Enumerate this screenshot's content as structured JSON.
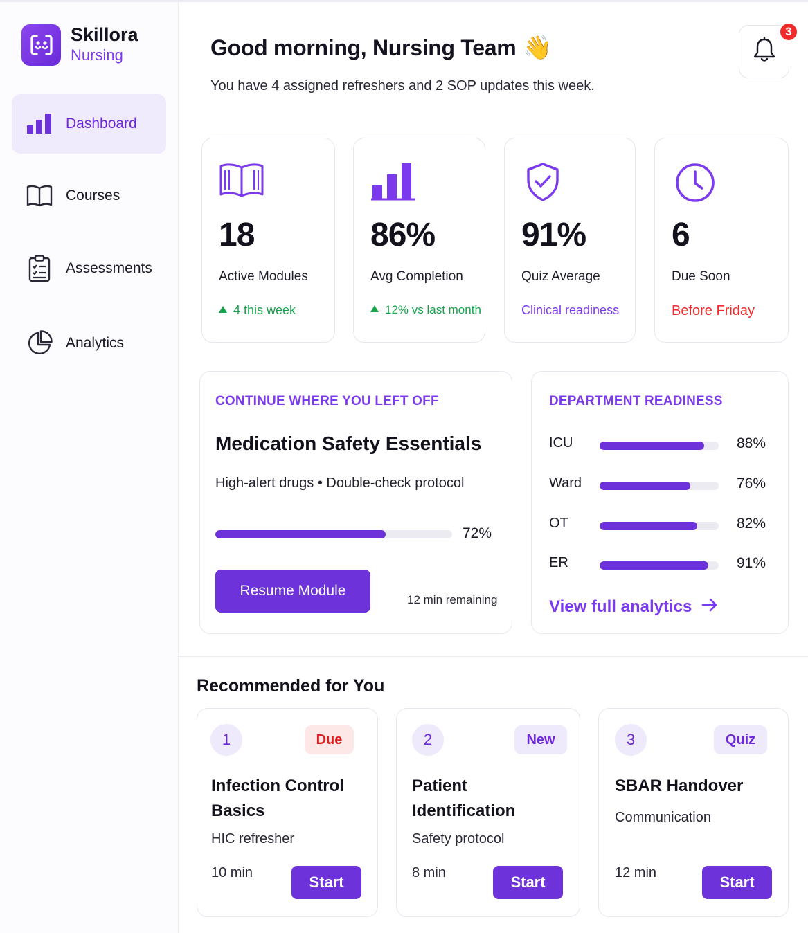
{
  "brand": {
    "name": "Skillora",
    "subtitle": "Nursing",
    "logo_icon": "skillora-logo-icon"
  },
  "sidebar": {
    "items": [
      {
        "label": "Dashboard",
        "icon": "bar-chart-icon",
        "active": true
      },
      {
        "label": "Courses",
        "icon": "book-open-icon",
        "active": false
      },
      {
        "label": "Assessments",
        "icon": "clipboard-list-icon",
        "active": false
      },
      {
        "label": "Analytics",
        "icon": "pie-chart-icon",
        "active": false
      }
    ]
  },
  "header": {
    "greeting": "Good morning, Nursing Team",
    "wave_emoji": "👋",
    "subtitle": "You have 4 assigned refreshers and 2 SOP updates this week.",
    "notifications_count": "3"
  },
  "stats": [
    {
      "value": "18",
      "label": "Active Modules",
      "note": "4 this week",
      "trend": "up",
      "icon": "book-open-icon"
    },
    {
      "value": "86%",
      "label": "Avg Completion",
      "note": "12% vs last month",
      "trend": "up",
      "icon": "bar-chart-icon"
    },
    {
      "value": "91%",
      "label": "Quiz Average",
      "note": "Clinical readiness",
      "icon": "shield-check-icon"
    },
    {
      "value": "6",
      "label": "Due Soon",
      "note": "Before Friday",
      "icon": "clock-icon"
    }
  ],
  "continue": {
    "heading": "CONTINUE WHERE YOU LEFT OFF",
    "course_title": "Medication Safety Essentials",
    "meta": "High-alert drugs • Double-check protocol",
    "progress_pct": "72%",
    "progress": 72,
    "button": "Resume Module",
    "remaining": "12 min remaining"
  },
  "readiness": {
    "heading": "DEPARTMENT READINESS",
    "departments": [
      {
        "name": "ICU",
        "pct_label": "88%",
        "value": 88
      },
      {
        "name": "Ward",
        "pct_label": "76%",
        "value": 76
      },
      {
        "name": "OT",
        "pct_label": "82%",
        "value": 82
      },
      {
        "name": "ER",
        "pct_label": "91%",
        "value": 91
      }
    ],
    "link": "View full analytics"
  },
  "recommended": {
    "heading": "Recommended for You",
    "items": [
      {
        "num": "1",
        "tag": "Due",
        "title_line1": "Infection Control",
        "title_line2": "Basics",
        "subtitle": "HIC refresher",
        "time": "10 min",
        "button": "Start"
      },
      {
        "num": "2",
        "tag": "New",
        "title_line1": "Patient",
        "title_line2": "Identification",
        "subtitle": "Safety protocol",
        "time": "8 min",
        "button": "Start"
      },
      {
        "num": "3",
        "tag": "Quiz",
        "title_line1": "SBAR Handover",
        "title_line2": "",
        "subtitle": "Communication",
        "time": "12 min",
        "button": "Start"
      }
    ]
  },
  "colors": {
    "accent": "#6d32d9",
    "accent_light": "#f0eafd",
    "success": "#16a34a",
    "danger": "#ef2b2b"
  }
}
